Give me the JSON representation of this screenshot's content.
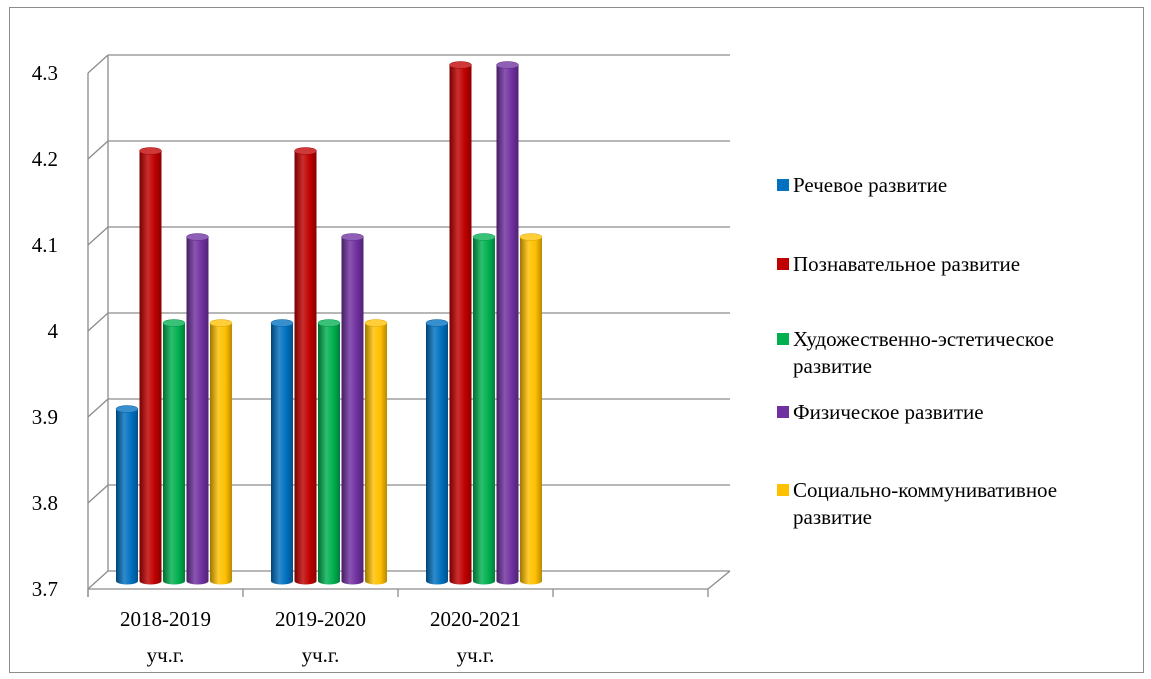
{
  "chart_data": {
    "type": "bar",
    "categories": [
      "2018-2019 уч.г.",
      "2019-2020 уч.г.",
      "2020-2021 уч.г."
    ],
    "series": [
      {
        "name": "Речевое развитие",
        "color": "#0070C0",
        "values": [
          3.9,
          4.0,
          4.0
        ]
      },
      {
        "name": "Познавательное развитие",
        "color": "#C00000",
        "values": [
          4.2,
          4.2,
          4.3
        ]
      },
      {
        "name": "Художественно-эстетическое развитие",
        "color": "#00B050",
        "values": [
          4.0,
          4.0,
          4.1
        ]
      },
      {
        "name": "Физическое развитие",
        "color": "#7030A0",
        "values": [
          4.1,
          4.1,
          4.3
        ]
      },
      {
        "name": "Социально-коммунивативное развитие",
        "color": "#FFC000",
        "values": [
          4.0,
          4.0,
          4.1
        ]
      }
    ],
    "ylim": [
      3.7,
      4.3
    ],
    "yticks": [
      "3.7",
      "3.8",
      "3.9",
      "4",
      "4.1",
      "4.2",
      "4.3"
    ],
    "grid": true,
    "legend_position": "right",
    "style": "3d-cylinder"
  }
}
